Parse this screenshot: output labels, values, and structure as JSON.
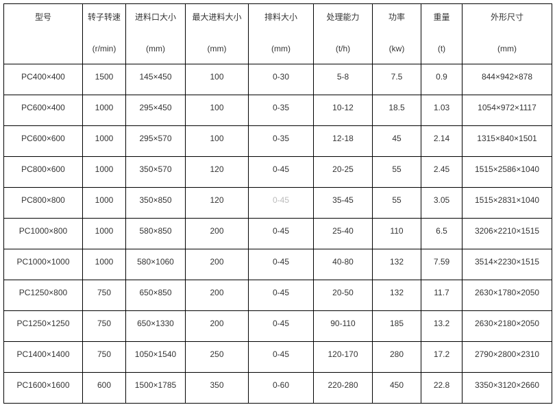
{
  "headers": [
    {
      "title": "型号",
      "unit": ""
    },
    {
      "title": "转子转速",
      "unit": "(r/min)"
    },
    {
      "title": "进料口大小",
      "unit": "(mm)"
    },
    {
      "title": "最大进料大小",
      "unit": "(mm)"
    },
    {
      "title": "排料大小",
      "unit": "(mm)"
    },
    {
      "title": "处理能力",
      "unit": "(t/h)"
    },
    {
      "title": "功率",
      "unit": "(kw)"
    },
    {
      "title": "重量",
      "unit": "(t)"
    },
    {
      "title": "外形尺寸",
      "unit": "(mm)"
    }
  ],
  "rows": [
    [
      "PC400×400",
      "1500",
      "145×450",
      "100",
      "0-30",
      "5-8",
      "7.5",
      "0.9",
      "844×942×878"
    ],
    [
      "PC600×400",
      "1000",
      "295×450",
      "100",
      "0-35",
      "10-12",
      "18.5",
      "1.03",
      "1054×972×1117"
    ],
    [
      "PC600×600",
      "1000",
      "295×570",
      "100",
      "0-35",
      "12-18",
      "45",
      "2.14",
      "1315×840×1501"
    ],
    [
      "PC800×600",
      "1000",
      "350×570",
      "120",
      "0-45",
      "20-25",
      "55",
      "2.45",
      "1515×2586×1040"
    ],
    [
      "PC800×800",
      "1000",
      "350×850",
      "120",
      "0-45",
      "35-45",
      "55",
      "3.05",
      "1515×2831×1040"
    ],
    [
      "PC1000×800",
      "1000",
      "580×850",
      "200",
      "0-45",
      "25-40",
      "110",
      "6.5",
      "3206×2210×1515"
    ],
    [
      "PC1000×1000",
      "1000",
      "580×1060",
      "200",
      "0-45",
      "40-80",
      "132",
      "7.59",
      "3514×2230×1515"
    ],
    [
      "PC1250×800",
      "750",
      "650×850",
      "200",
      "0-45",
      "20-50",
      "132",
      "11.7",
      "2630×1780×2050"
    ],
    [
      "PC1250×1250",
      "750",
      "650×1330",
      "200",
      "0-45",
      "90-110",
      "185",
      "13.2",
      "2630×2180×2050"
    ],
    [
      "PC1400×1400",
      "750",
      "1050×1540",
      "250",
      "0-45",
      "120-170",
      "280",
      "17.2",
      "2790×2800×2310"
    ],
    [
      "PC1600×1600",
      "600",
      "1500×1785",
      "350",
      "0-60",
      "220-280",
      "450",
      "22.8",
      "3350×3120×2660"
    ]
  ]
}
